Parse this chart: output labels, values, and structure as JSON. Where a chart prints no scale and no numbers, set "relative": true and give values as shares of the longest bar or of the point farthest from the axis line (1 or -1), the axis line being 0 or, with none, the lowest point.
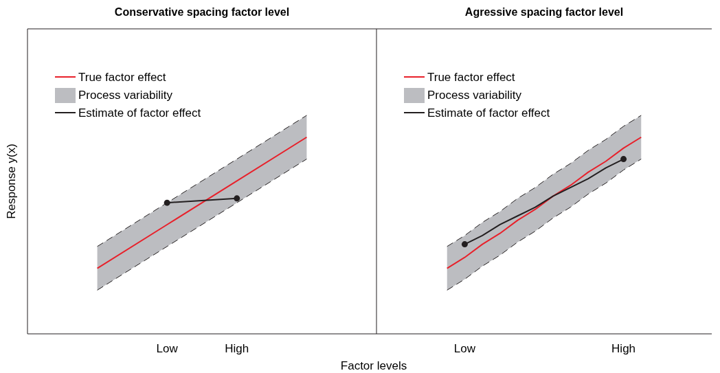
{
  "chart_data": [
    {
      "type": "line",
      "title": "Conservative spacing factor level",
      "xlabel": "Factor levels",
      "ylabel": "Response y(x)",
      "relative": true,
      "categories": [
        null,
        "Low",
        "High",
        null
      ],
      "legend": "top left",
      "series": [
        {
          "name": "True factor effect",
          "color": "#e8202a",
          "values": [
            0.3,
            0.5,
            0.7,
            0.9
          ]
        },
        {
          "name": "Process variability",
          "type": "area",
          "color": "#bcbdc1",
          "line_style": "dashed",
          "values": [
            0.4,
            0.6,
            0.8,
            1
          ]
        },
        {
          "name": "Estimate of factor effect",
          "color": "#231f20",
          "values": [
            null,
            0.6,
            0.62,
            null
          ]
        },
        {
          "color": "#231f20",
          "line_style": "dashed",
          "values": [
            0.2,
            0.4,
            0.6,
            0.8
          ]
        },
        {
          "type": "scatter",
          "color": "#231f20",
          "marker": "circle",
          "values": [
            null,
            0.6,
            0.62,
            null
          ]
        }
      ]
    },
    {
      "type": "line",
      "title": "Agressive spacing factor level",
      "relative": true,
      "categories": [
        null,
        "Low",
        null,
        null,
        null,
        null,
        null,
        null,
        null,
        null,
        "High",
        null
      ],
      "legend": "top left",
      "series": [
        {
          "name": "True factor effect",
          "color": "#e8202a",
          "values": [
            0.3,
            0.35,
            0.41,
            0.46,
            0.52,
            0.57,
            0.63,
            0.68,
            0.74,
            0.79,
            0.85,
            0.9
          ]
        },
        {
          "name": "Process variability",
          "type": "area",
          "color": "#bcbdc1",
          "line_style": "dashed",
          "values": [
            0.4,
            0.45,
            0.51,
            0.56,
            0.62,
            0.67,
            0.73,
            0.78,
            0.84,
            0.89,
            0.95,
            1
          ]
        },
        {
          "name": "Estimate of factor effect",
          "color": "#231f20",
          "values": [
            null,
            0.41,
            0.45,
            0.5,
            0.54,
            0.58,
            0.63,
            0.67,
            0.71,
            0.76,
            0.8,
            null
          ]
        },
        {
          "color": "#231f20",
          "line_style": "dashed",
          "values": [
            0.2,
            0.25,
            0.31,
            0.36,
            0.42,
            0.47,
            0.53,
            0.58,
            0.64,
            0.69,
            0.75,
            0.8
          ]
        },
        {
          "type": "scatter",
          "color": "#231f20",
          "marker": "circle",
          "values": [
            null,
            0.41,
            null,
            null,
            null,
            null,
            null,
            null,
            null,
            null,
            0.8,
            null
          ]
        }
      ]
    }
  ]
}
